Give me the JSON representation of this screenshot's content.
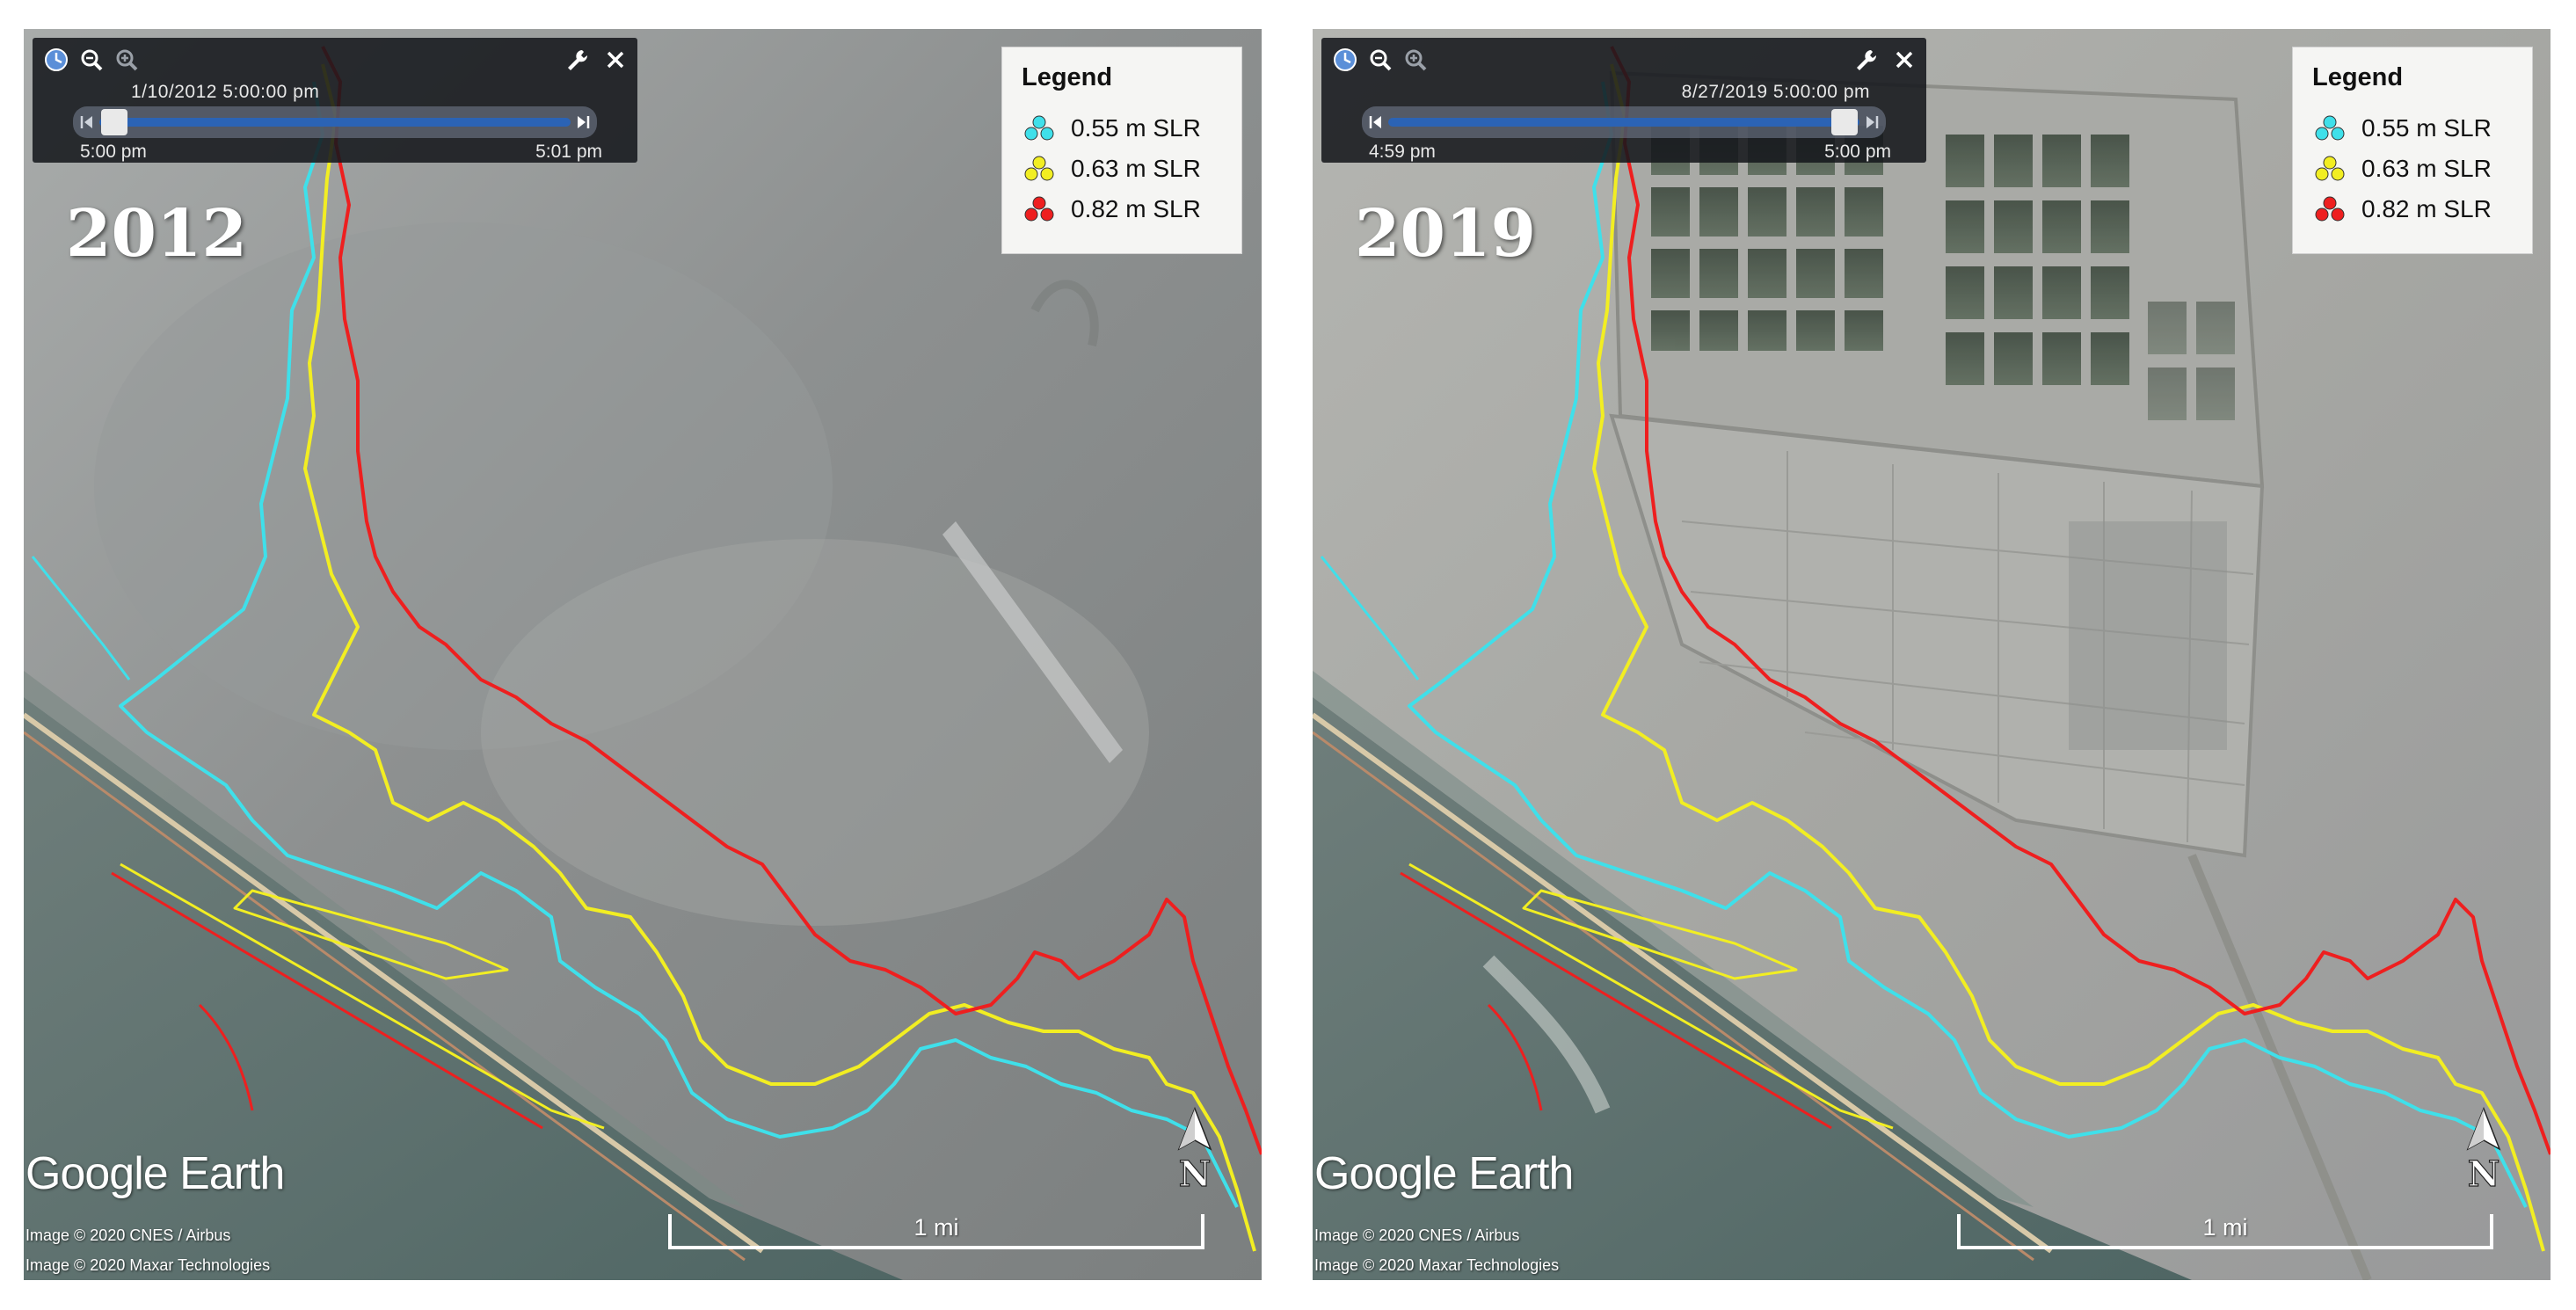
{
  "legend": {
    "title": "Legend",
    "items": [
      {
        "label": "0.55 m SLR",
        "color": "#3fe0ea",
        "icon": "cyan-paddle-icon"
      },
      {
        "label": "0.63 m SLR",
        "color": "#f2ee22",
        "icon": "yellow-paddle-icon"
      },
      {
        "label": "0.82 m SLR",
        "color": "#ee1f1f",
        "icon": "red-paddle-icon"
      }
    ]
  },
  "brand": "Google Earth",
  "scale": "1 mi",
  "north_label": "N",
  "panels": [
    {
      "year": "2012",
      "slider": {
        "datetime": "1/10/2012   5:00:00 pm",
        "start": "5:00 pm",
        "end": "5:01 pm",
        "position": 0.0
      },
      "credits": [
        "Image © 2020 CNES / Airbus",
        "Image © 2020 Maxar Technologies"
      ]
    },
    {
      "year": "2019",
      "slider": {
        "datetime": "8/27/2019   5:00:00 pm",
        "start": "4:59 pm",
        "end": "5:00 pm",
        "position": 1.0
      },
      "credits": [
        "Image © 2020 CNES / Airbus",
        "Image © 2020 Maxar Technologies"
      ]
    }
  ]
}
